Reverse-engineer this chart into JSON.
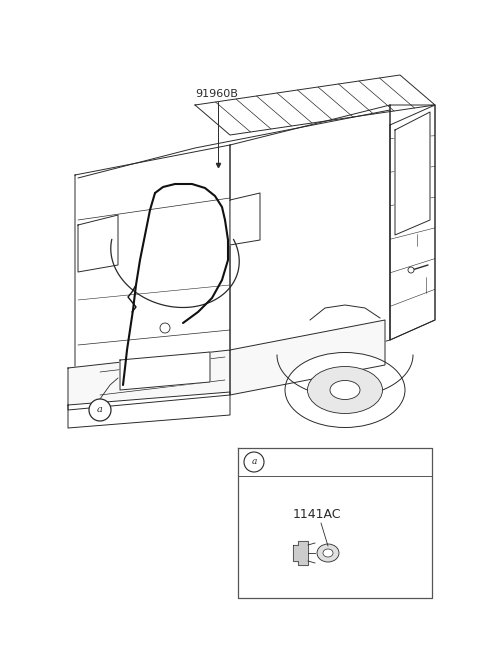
{
  "bg_color": "#ffffff",
  "label_91960B": "91960B",
  "label_1141AC": "1141AC",
  "label_a": "a",
  "fig_width": 4.8,
  "fig_height": 6.56,
  "dpi": 100,
  "line_color": "#2a2a2a",
  "line_width": 0.7
}
